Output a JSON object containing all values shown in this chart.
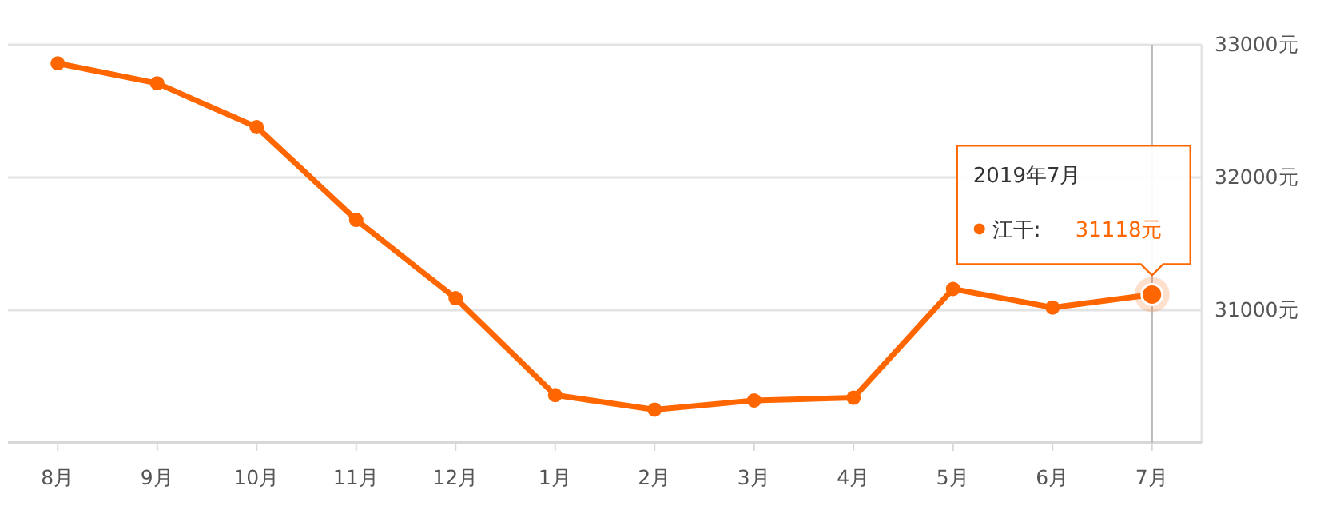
{
  "chart_data": {
    "type": "line",
    "categories": [
      "8月",
      "9月",
      "10月",
      "11月",
      "12月",
      "1月",
      "2月",
      "3月",
      "4月",
      "5月",
      "6月",
      "7月"
    ],
    "series": [
      {
        "name": "江干:",
        "color": "#ff6600",
        "values": [
          32860,
          32710,
          32380,
          31680,
          31090,
          30360,
          30250,
          30320,
          30340,
          31160,
          31020,
          31118
        ],
        "value_labels": [
          null,
          null,
          null,
          null,
          null,
          null,
          null,
          null,
          null,
          null,
          null,
          "31118元"
        ]
      }
    ],
    "ylim": [
      30000,
      33000
    ],
    "yticks": [
      {
        "value": 31000,
        "label": "31000元"
      },
      {
        "value": 32000,
        "label": "32000元"
      },
      {
        "value": 33000,
        "label": "33000元"
      }
    ],
    "grid": "y",
    "marker": "circle",
    "line_style": "solid",
    "ref_lines": [
      {
        "axis": "x",
        "value": "7月",
        "color": "#bbbbbb"
      }
    ],
    "annotations": [
      "2019年7月"
    ]
  }
}
